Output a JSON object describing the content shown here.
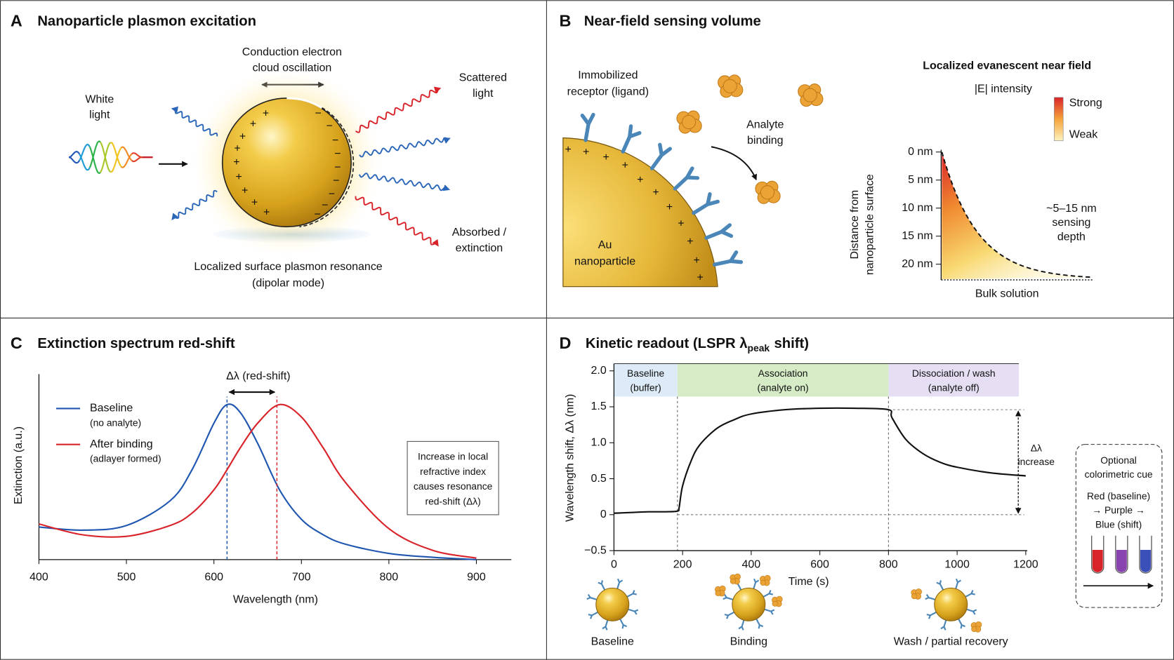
{
  "panel_a": {
    "label": "A",
    "title": "Nanoparticle plasmon excitation",
    "oscillation": [
      "Conduction electron",
      "cloud oscillation"
    ],
    "incident": [
      "White",
      "light"
    ],
    "scattered": [
      "Scattered",
      "light"
    ],
    "absorbed": [
      "Absorbed /",
      "extinction"
    ],
    "caption": [
      "Localized surface plasmon resonance",
      "(dipolar mode)"
    ],
    "plus": "+",
    "minus": "−"
  },
  "panel_b": {
    "label": "B",
    "title": "Near-field sensing volume",
    "receptor": [
      "Immobilized",
      "receptor (ligand)"
    ],
    "analyte": [
      "Analyte",
      "binding"
    ],
    "particle": [
      "Au",
      "nanoparticle"
    ],
    "plus": "+",
    "field_title": "Localized evanescent near field",
    "field_subtitle": "|E| intensity",
    "scale_high": "Strong",
    "scale_low": "Weak",
    "depth_axis": [
      "Distance from",
      "nanoparticle surface"
    ],
    "depth_ticks": [
      "0 nm",
      "5 nm",
      "10 nm",
      "15 nm",
      "20 nm"
    ],
    "depth_note": [
      "~5–15 nm",
      "sensing",
      "depth"
    ],
    "bulk": "Bulk solution"
  },
  "chart_data": [
    {
      "label": "C",
      "type": "line",
      "title": "Extinction spectrum red-shift",
      "xlabel": "Wavelength (nm)",
      "ylabel": "Extinction (a.u.)",
      "xlim": [
        400,
        940
      ],
      "xticks": [
        400,
        500,
        600,
        700,
        800,
        900
      ],
      "ylim": [
        0,
        1.1
      ],
      "x": [
        400,
        450,
        500,
        550,
        575,
        600,
        615,
        630,
        650,
        675,
        700,
        725,
        750,
        800,
        850,
        900
      ],
      "series": [
        {
          "name": "Baseline",
          "note": "(no analyte)",
          "color": "#1f56b0",
          "peak": 615,
          "values": [
            0.21,
            0.19,
            0.22,
            0.38,
            0.58,
            0.88,
            1.0,
            0.95,
            0.75,
            0.45,
            0.26,
            0.16,
            0.1,
            0.04,
            0.015,
            0
          ]
        },
        {
          "name": "After binding",
          "note": "(adlayer formed)",
          "color": "#d9232a",
          "peak": 672,
          "values": [
            0.23,
            0.16,
            0.15,
            0.22,
            0.3,
            0.45,
            0.58,
            0.72,
            0.88,
            1.0,
            0.92,
            0.72,
            0.5,
            0.2,
            0.06,
            0.01
          ]
        }
      ],
      "shift_label": "Δλ (red-shift)",
      "note_box": [
        "Increase in local",
        "refractive index",
        "causes resonance",
        "red-shift (Δλ)"
      ]
    },
    {
      "label": "D",
      "type": "line",
      "title": "Kinetic readout (LSPR λ",
      "title_sub": "peak",
      "title_end": "shift)",
      "xlabel": "Time (s)",
      "ylabel": "Wavelength shift, Δλ (nm)",
      "xlim": [
        0,
        1200
      ],
      "xticks": [
        0,
        200,
        400,
        600,
        800,
        1000,
        1200
      ],
      "ylim": [
        -0.5,
        2.1
      ],
      "yticks": [
        {
          "value": -0.5,
          "label": "−0.5"
        },
        0,
        0.5,
        {
          "value": 1,
          "label": "1.0"
        },
        1.5,
        {
          "value": 2,
          "label": "2.0"
        }
      ],
      "phases": [
        {
          "name": "Baseline",
          "note": "(buffer)",
          "start": 0,
          "end": 185,
          "color": "#dcebf7"
        },
        {
          "name": "Association",
          "note": "(analyte on)",
          "start": 185,
          "end": 800,
          "color": "#d6ecc6"
        },
        {
          "name": "Dissociation / wash",
          "note": "(analyte off)",
          "start": 800,
          "end": 1180,
          "color": "#e6def3"
        }
      ],
      "x": [
        0,
        50,
        100,
        150,
        185,
        190,
        200,
        225,
        250,
        300,
        350,
        400,
        500,
        600,
        700,
        800,
        810,
        850,
        900,
        950,
        1000,
        1100,
        1200
      ],
      "values": [
        0.02,
        0.03,
        0.04,
        0.04,
        0.05,
        0.1,
        0.4,
        0.75,
        0.97,
        1.2,
        1.32,
        1.4,
        1.46,
        1.48,
        1.48,
        1.46,
        1.35,
        1.05,
        0.85,
        0.73,
        0.66,
        0.58,
        0.54
      ],
      "color": "#111111",
      "shift_annotation": [
        "Δλ",
        "increase"
      ],
      "colorimetric": {
        "title": [
          "Optional",
          "colorimetric cue"
        ],
        "steps": [
          "Red (baseline)",
          "→ Purple →",
          "Blue (shift)"
        ],
        "tube_colors": [
          "#d9232a",
          "#8a44b0",
          "#3a4fb8"
        ]
      },
      "stages": [
        "Baseline",
        "Binding",
        "Wash / partial recovery"
      ]
    }
  ]
}
